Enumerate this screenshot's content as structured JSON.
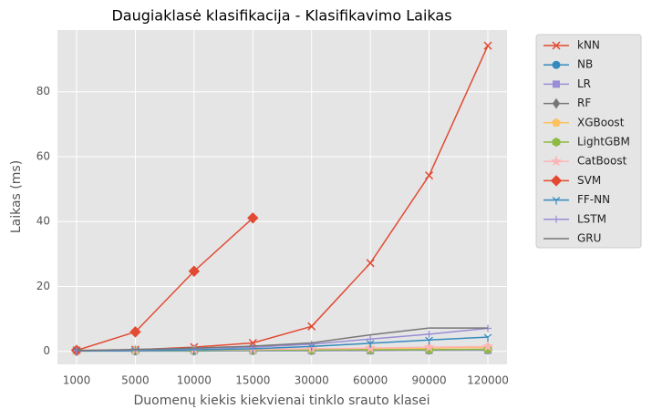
{
  "chart_data": {
    "type": "line",
    "title": "Daugiaklasė klasifikacija - Klasifikavimo Laikas",
    "x_label": "Duomenų kiekis kiekvienai tinklo srauto klasei",
    "y_label": "Laikas (ms)",
    "categories": [
      "1000",
      "5000",
      "10000",
      "15000",
      "30000",
      "60000",
      "90000",
      "120000"
    ],
    "ylim": [
      -4,
      99
    ],
    "yticks": [
      0,
      20,
      40,
      60,
      80
    ],
    "grid": true,
    "legend": "outside right",
    "series": [
      {
        "name": "kNN",
        "color": "#E24A33",
        "marker": "x",
        "values": [
          0.3,
          0.5,
          1.3,
          2.6,
          7.7,
          27.2,
          54.2,
          94.2
        ]
      },
      {
        "name": "NB",
        "color": "#348ABD",
        "marker": "o",
        "values": [
          0.1,
          0.1,
          0.1,
          0.2,
          0.2,
          0.3,
          0.3,
          0.4
        ]
      },
      {
        "name": "LR",
        "color": "#988ED5",
        "marker": "s",
        "values": [
          0.2,
          0.2,
          0.2,
          0.2,
          0.2,
          0.2,
          0.3,
          0.3
        ]
      },
      {
        "name": "RF",
        "color": "#777777",
        "marker": "d",
        "values": [
          0.2,
          0.3,
          0.3,
          0.4,
          0.4,
          0.5,
          0.5,
          0.6
        ]
      },
      {
        "name": "XGBoost",
        "color": "#FBC15E",
        "marker": "p",
        "values": [
          0.2,
          0.3,
          0.4,
          0.5,
          0.6,
          0.8,
          1.0,
          1.2
        ]
      },
      {
        "name": "LightGBM",
        "color": "#8EBA42",
        "marker": "h",
        "values": [
          0.3,
          0.3,
          0.3,
          0.4,
          0.4,
          0.5,
          0.5,
          0.6
        ]
      },
      {
        "name": "CatBoost",
        "color": "#FFB5B8",
        "marker": "*",
        "values": [
          0.3,
          0.4,
          0.5,
          0.6,
          0.8,
          1.0,
          1.3,
          1.5
        ]
      },
      {
        "name": "SVM",
        "color": "#E24A33",
        "marker": "D",
        "values": [
          0.3,
          6.0,
          24.7,
          41.1,
          null,
          null,
          null,
          null
        ]
      },
      {
        "name": "FF-NN",
        "color": "#348ABD",
        "marker": "1",
        "values": [
          0.1,
          0.3,
          0.5,
          0.8,
          1.5,
          2.5,
          3.5,
          4.4
        ]
      },
      {
        "name": "LSTM",
        "color": "#988ED5",
        "marker": "+",
        "values": [
          0.2,
          0.5,
          0.9,
          1.3,
          2.2,
          3.8,
          5.3,
          7.1
        ]
      },
      {
        "name": "GRU",
        "color": "#777777",
        "marker": "none",
        "values": [
          0.2,
          0.6,
          1.0,
          1.6,
          2.6,
          5.1,
          7.2,
          7.2
        ]
      }
    ]
  }
}
